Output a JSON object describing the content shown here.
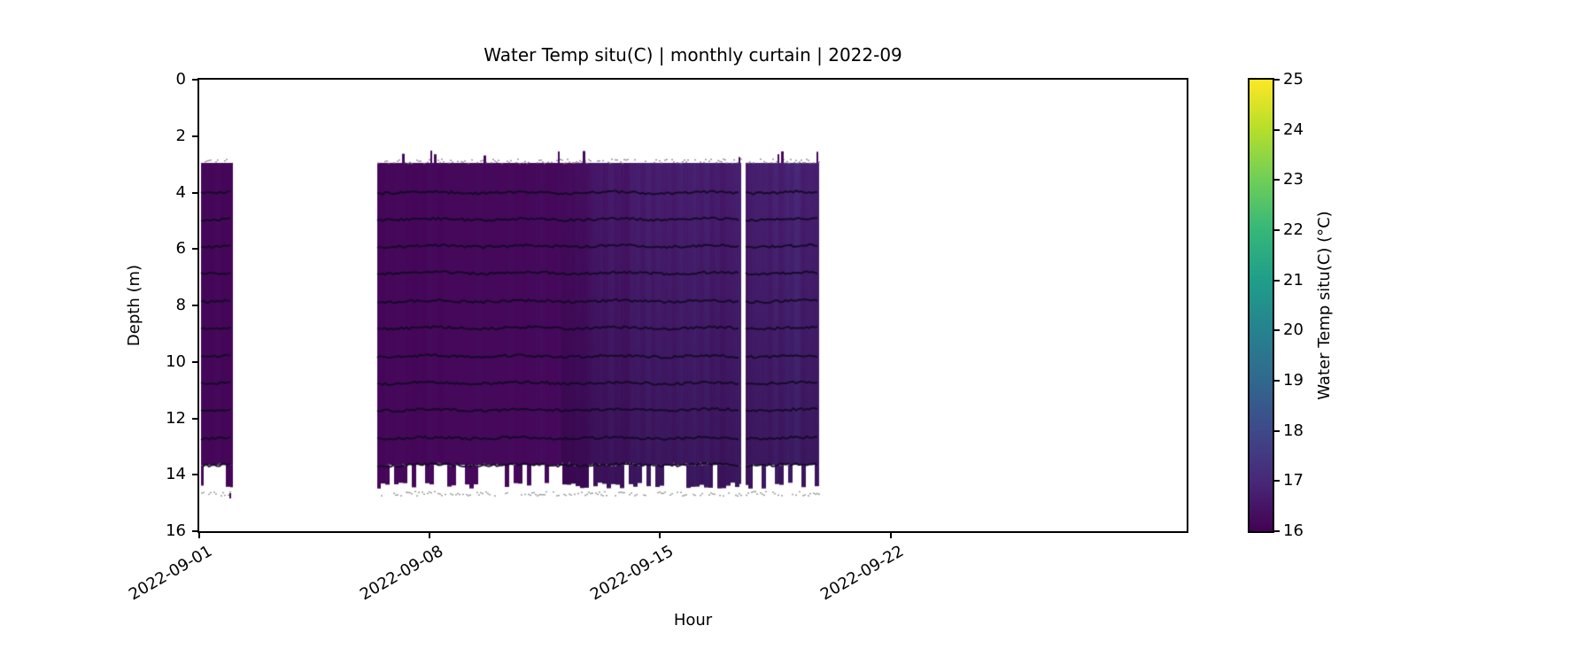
{
  "figure": {
    "background": "#ffffff",
    "spine_color": "#000000",
    "tick_color": "#000000",
    "text_color": "#000000"
  },
  "chart_data": {
    "type": "heatmap",
    "title": "Water Temp situ(C) | monthly curtain | 2022-09",
    "xlabel": "Hour",
    "ylabel": "Depth (m)",
    "colorbar_label": "Water Temp situ(C) (°C)",
    "x_start": "2022-09-01",
    "x_end": "2022-10-01",
    "x_span_days": 30,
    "x_ticks": [
      {
        "day": 0,
        "label": "2022-09-01"
      },
      {
        "day": 7,
        "label": "2022-09-08"
      },
      {
        "day": 14,
        "label": "2022-09-15"
      },
      {
        "day": 21,
        "label": "2022-09-22"
      }
    ],
    "y_ticks": [
      0,
      2,
      4,
      6,
      8,
      10,
      12,
      14,
      16
    ],
    "depth_range_m": [
      0,
      16
    ],
    "y_axis_inverted": true,
    "grid": false,
    "color_scale": {
      "min": 16,
      "max": 25,
      "ticks": [
        16,
        17,
        18,
        19,
        20,
        21,
        22,
        23,
        24,
        25
      ],
      "colormap": "viridis",
      "stops": [
        "#440154",
        "#482878",
        "#3e4989",
        "#31688e",
        "#26828e",
        "#1f9e89",
        "#35b779",
        "#6ece58",
        "#b5de2b",
        "#fde725"
      ]
    },
    "observed_temp_range_c": [
      16.1,
      17.3
    ],
    "coverage": {
      "top_fringe_depth_m": 2.87,
      "top_depth_m": 2.95,
      "solid_bottom_depth_m": 13.65,
      "intermittent_bottom_depth_m": 14.5,
      "bottom_fringe_depth_m": 14.65
    },
    "segments": [
      {
        "start_day": 0.05,
        "end_day": 1.0,
        "note": "2022-09-01 block"
      },
      {
        "start_day": 5.4,
        "end_day": 16.45,
        "note": "2022-09-06 to 2022-09-17 block"
      },
      {
        "start_day": 16.6,
        "end_day": 18.8,
        "note": "2022-09-17 to 2022-09-19 block"
      }
    ],
    "temp_profile": [
      {
        "day": 0.0,
        "temp": 16.15
      },
      {
        "day": 11.0,
        "temp": 16.2
      },
      {
        "day": 12.5,
        "temp": 16.55
      },
      {
        "day": 14.0,
        "temp": 16.7
      },
      {
        "day": 16.45,
        "temp": 16.75
      },
      {
        "day": 16.6,
        "temp": 16.8
      },
      {
        "day": 18.8,
        "temp": 16.85
      }
    ],
    "streak_profile": [
      {
        "day": 0.0,
        "amp": 0.05
      },
      {
        "day": 10.5,
        "amp": 0.06
      },
      {
        "day": 12.0,
        "amp": 0.2
      },
      {
        "day": 18.8,
        "amp": 0.24
      }
    ],
    "sensor_line_depths": [
      4.0,
      4.95,
      5.9,
      6.85,
      7.85,
      8.8,
      9.8,
      10.75,
      11.7,
      12.7,
      13.65
    ]
  }
}
